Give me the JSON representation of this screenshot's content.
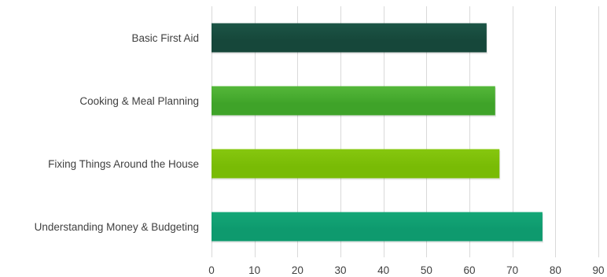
{
  "chart_data": {
    "type": "bar",
    "orientation": "horizontal",
    "categories": [
      "Basic First Aid",
      "Cooking & Meal Planning",
      "Fixing Things Around the House",
      "Understanding Money & Budgeting"
    ],
    "values": [
      64,
      66,
      67,
      77
    ],
    "xlim": [
      0,
      90
    ],
    "xticks": [
      "0",
      "10",
      "20",
      "30",
      "40",
      "50",
      "60",
      "70",
      "80",
      "90"
    ],
    "grid": true,
    "legend": "none",
    "title": "",
    "xlabel": "",
    "ylabel": "",
    "bar_colors": [
      "#16473a",
      "#3fa329",
      "#79bb05",
      "#0e9a6e"
    ],
    "bar_gradient_light": [
      "#1c5546",
      "#55b83a",
      "#86c70f",
      "#14a777"
    ]
  }
}
